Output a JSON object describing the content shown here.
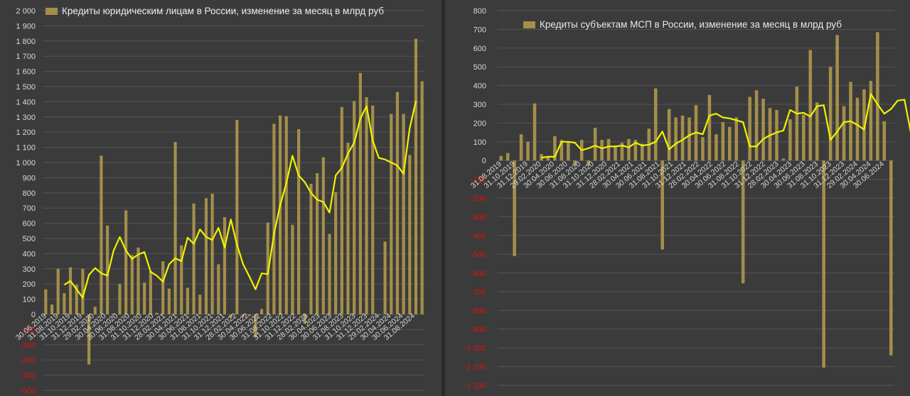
{
  "colors": {
    "bar": "#a48f4a",
    "line": "#f2f200",
    "grid": "#555555",
    "tick": "#d8d8d8",
    "negative_tick": "#e01010",
    "background": "#3b3b3b"
  },
  "chart_data": [
    {
      "type": "bar",
      "title": "Кредиты юридическим лицам в России, изменение за месяц в млрд руб",
      "legend": "Кредиты юридическим лицам в России, изменение за месяц в млрд руб",
      "legend_position": "top-left",
      "grid": true,
      "ylim": [
        -500,
        2000
      ],
      "y_ticks": [
        "2 000",
        "1 900",
        "1 800",
        "1 700",
        "1 600",
        "1 500",
        "1 400",
        "1 300",
        "1 200",
        "1 100",
        "1 000",
        "900",
        "800",
        "700",
        "600",
        "500",
        "400",
        "300",
        "200",
        "100",
        "0",
        "-100",
        "-200",
        "-300",
        "-400",
        "-500"
      ],
      "x_tick_labels": [
        "30.06.2019",
        "31.08.2019",
        "31.10.2019",
        "31.12.2019",
        "29.02.2020",
        "30.04.2020",
        "30.06.2020",
        "31.08.2020",
        "31.10.2020",
        "31.12.2020",
        "28.02.2021",
        "30.04.2021",
        "30.06.2021",
        "31.08.2021",
        "31.10.2021",
        "31.12.2021",
        "28.02.2022",
        "30.04.2022",
        "30.06.2022",
        "31.08.2022",
        "31.10.2022",
        "31.12.2022",
        "28.02.2023",
        "30.04.2023",
        "30.06.2023",
        "31.08.2023",
        "31.10.2023",
        "31.12.2023",
        "29.02.2024",
        "30.04.2024",
        "30.06.2024",
        "31.08.2024"
      ],
      "values": [
        165,
        65,
        300,
        140,
        310,
        195,
        300,
        -330,
        50,
        1045,
        585,
        5,
        200,
        685,
        390,
        440,
        210,
        285,
        10,
        350,
        170,
        1135,
        455,
        175,
        730,
        130,
        765,
        795,
        330,
        640,
        -20,
        1280,
        -15,
        -10,
        -150,
        35,
        605,
        1255,
        1310,
        1305,
        590,
        1220,
        -60,
        860,
        930,
        1035,
        530,
        805,
        1365,
        1130,
        1405,
        1590,
        1430,
        1375,
        -5,
        480,
        1320,
        1465,
        1320,
        1050,
        1815,
        1535
      ],
      "trend_start_index": 3,
      "trend": [
        195,
        220,
        165,
        110,
        260,
        305,
        270,
        255,
        420,
        510,
        420,
        365,
        395,
        410,
        280,
        255,
        215,
        330,
        370,
        350,
        505,
        465,
        560,
        510,
        490,
        570,
        440,
        625,
        460,
        330,
        250,
        165,
        270,
        265,
        530,
        720,
        865,
        1045,
        915,
        870,
        800,
        755,
        740,
        670,
        915,
        965,
        1060,
        1130,
        1290,
        1370,
        1145,
        1030,
        1020,
        1000,
        980,
        925,
        1225,
        1405
      ],
      "series": [
        {
          "name": "Кредиты юридическим лицам в России, изменение за месяц в млрд руб",
          "type": "bar"
        },
        {
          "type": "line"
        }
      ]
    },
    {
      "type": "bar",
      "title": "Кредиты субъектам МСП  в России, изменение за месяц в млрд руб",
      "legend": "Кредиты субъектам МСП  в России, изменение за месяц в млрд руб",
      "legend_position": "top-left",
      "grid": true,
      "ylim": [
        -1200,
        800
      ],
      "y_ticks": [
        "800",
        "700",
        "600",
        "500",
        "400",
        "300",
        "200",
        "100",
        "0",
        "-100",
        "-200",
        "-300",
        "-400",
        "-500",
        "-600",
        "-700",
        "-800",
        "-900",
        "-1 000",
        "-1 100",
        "-1 200"
      ],
      "x_tick_labels": [
        "31.08.2019",
        "31.10.2019",
        "31.12.2019",
        "29.02.2020",
        "30.04.2020",
        "30.06.2020",
        "31.08.2020",
        "31.10.2020",
        "31.12.2020",
        "28.02.2021",
        "30.04.2021",
        "30.06.2021",
        "31.08.2021",
        "31.10.2021",
        "31.12.2021",
        "28.02.2022",
        "30.04.2022",
        "30.06.2022",
        "31.08.2022",
        "31.10.2022",
        "31.12.2022",
        "28.02.2023",
        "30.04.2023",
        "30.06.2023",
        "31.08.2023",
        "31.10.2023",
        "31.12.2023",
        "29.02.2024",
        "30.04.2024",
        "30.06.2024"
      ],
      "values": [
        25,
        40,
        -510,
        140,
        100,
        305,
        35,
        20,
        130,
        110,
        100,
        -25,
        110,
        -25,
        175,
        110,
        115,
        80,
        95,
        115,
        110,
        90,
        170,
        385,
        -475,
        275,
        230,
        240,
        230,
        295,
        125,
        350,
        140,
        205,
        180,
        230,
        -655,
        340,
        375,
        330,
        280,
        270,
        10,
        220,
        395,
        245,
        590,
        310,
        -1105,
        500,
        670,
        290,
        420,
        335,
        380,
        425,
        685,
        210,
        -1040
      ],
      "trend_start_index": 6,
      "trend": [
        15,
        20,
        20,
        100,
        100,
        95,
        55,
        65,
        80,
        65,
        75,
        75,
        80,
        70,
        95,
        80,
        85,
        100,
        155,
        60,
        90,
        110,
        135,
        150,
        140,
        240,
        250,
        230,
        225,
        215,
        205,
        75,
        75,
        115,
        135,
        150,
        160,
        270,
        250,
        255,
        235,
        290,
        295,
        110,
        155,
        205,
        210,
        190,
        165,
        355,
        300,
        250,
        275,
        320,
        325,
        140
      ],
      "series": [
        {
          "name": "Кредиты субъектам МСП  в России, изменение за месяц в млрд руб",
          "type": "bar"
        },
        {
          "type": "line"
        }
      ]
    }
  ]
}
